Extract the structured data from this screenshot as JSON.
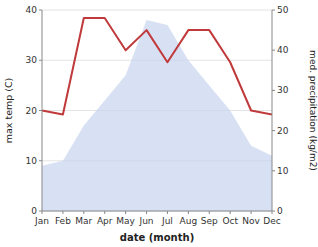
{
  "chart_data": {
    "type": "line",
    "xlabel": "date (month)",
    "ylabel": "max temp (C)",
    "y2label": "med. precipitation (kg/m2)",
    "categories": [
      "Jan",
      "Feb",
      "Mar",
      "Apr",
      "May",
      "Jun",
      "Jul",
      "Aug",
      "Sep",
      "Oct",
      "Nov",
      "Dec"
    ],
    "series": [
      {
        "type": "area",
        "color": "#c8d4f0",
        "values": [
          9,
          10,
          17,
          22,
          27,
          38,
          37,
          30,
          25,
          20,
          13,
          11
        ]
      },
      {
        "type": "line",
        "color": "#c0393b",
        "axis": "y2",
        "values": [
          25,
          24,
          48,
          48,
          40,
          45,
          37,
          45,
          45,
          37,
          25,
          24
        ]
      }
    ],
    "ylim": [
      0,
      40
    ],
    "yticks": [
      0,
      10,
      20,
      30,
      40
    ],
    "y2lim": [
      0,
      50
    ],
    "y2ticks": [
      0,
      10,
      20,
      30,
      40,
      50
    ],
    "grid": true
  }
}
